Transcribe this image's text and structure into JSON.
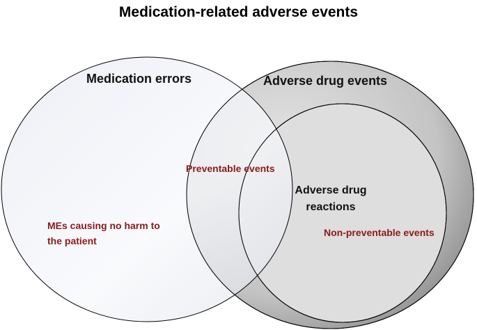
{
  "title": "Medication-related adverse events",
  "sets": {
    "medication_errors": "Medication errors",
    "adverse_drug_events": "Adverse drug events",
    "adverse_drug_reactions": "Adverse drug reactions"
  },
  "regions": {
    "no_harm": "MEs causing no harm to the patient",
    "preventable": "Preventable events",
    "non_preventable": "Non-preventable events"
  },
  "colors": {
    "region_text": "#8b1a1a",
    "outline": "#000000"
  }
}
